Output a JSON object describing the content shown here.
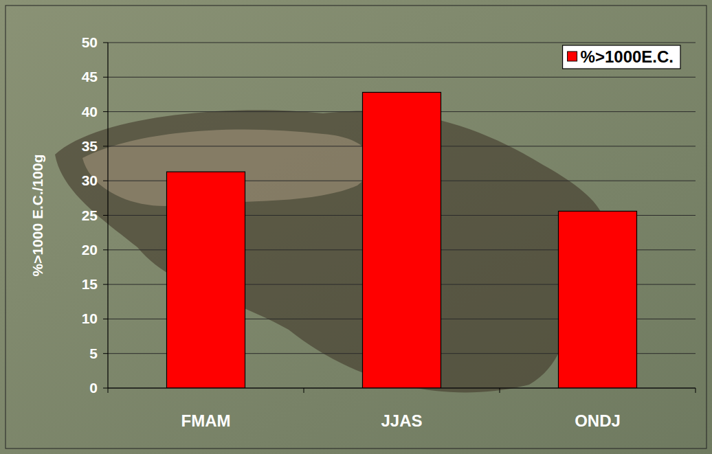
{
  "chart_data": {
    "type": "bar",
    "y_label": "%>1000 E.C./100g",
    "categories": [
      "FMAM",
      "JJAS",
      "ONDJ"
    ],
    "series": [
      {
        "name": "%>1000E.C.",
        "color": "#ff0000",
        "values": [
          31.3,
          42.8,
          25.6
        ]
      }
    ],
    "ylim": [
      0,
      50
    ],
    "yticks": [
      0,
      5,
      10,
      15,
      20,
      25,
      30,
      35,
      40,
      45,
      50
    ],
    "grid": true,
    "legend": "top-right"
  }
}
